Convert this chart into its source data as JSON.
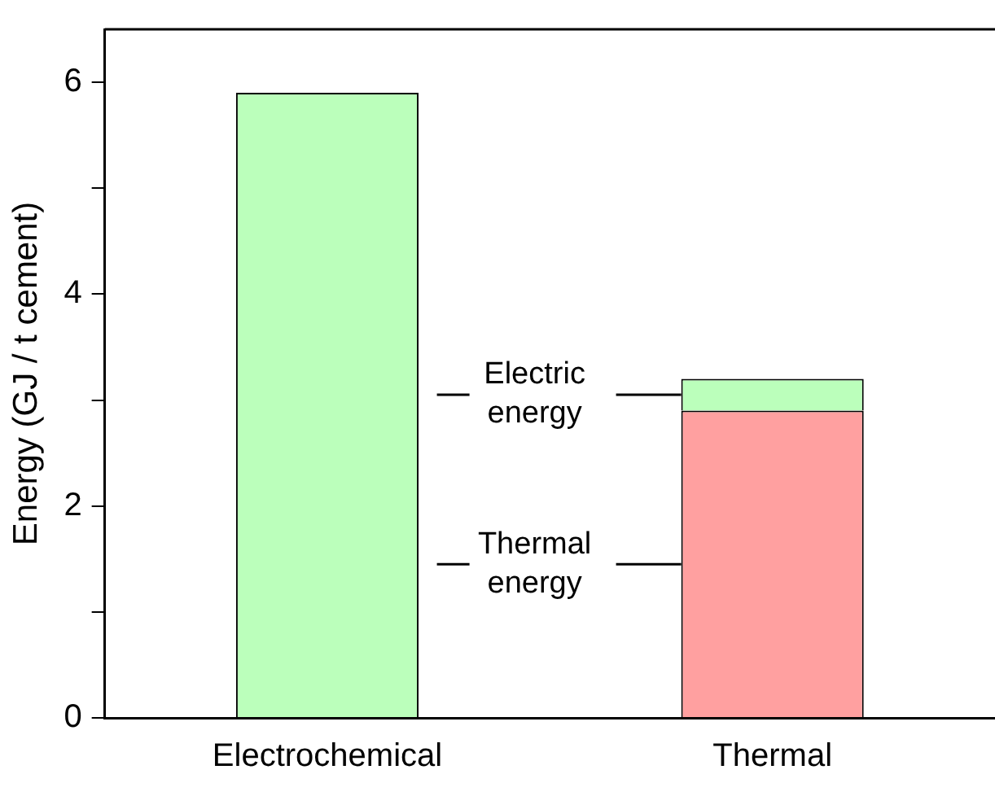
{
  "chart_data": {
    "type": "bar",
    "stacked": true,
    "ylabel": "Energy (GJ / t cement)",
    "categories": [
      "Electrochemical",
      "Thermal"
    ],
    "series": [
      {
        "name": "Thermal energy",
        "color": "#ffa0a0",
        "values": [
          null,
          2.9
        ]
      },
      {
        "name": "Electric energy",
        "color": "#bbffbb",
        "values": [
          5.9,
          0.3
        ]
      }
    ],
    "ylim": [
      0,
      6.5
    ],
    "yticks": [
      0,
      {
        "value": 1,
        "label": null
      },
      2,
      {
        "value": 3,
        "label": null
      },
      4,
      {
        "value": 5,
        "label": null
      },
      6
    ],
    "grid": false,
    "legend": false
  }
}
